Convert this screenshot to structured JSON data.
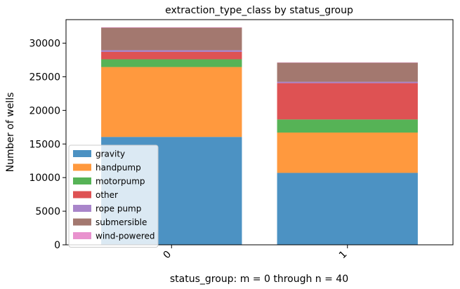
{
  "chart_data": {
    "type": "bar",
    "stacked": true,
    "title": "extraction_type_class by status_group",
    "xlabel": "status_group: m = 0 through n = 40",
    "ylabel": "Number of wells",
    "categories": [
      "0",
      "1"
    ],
    "ylim": [
      0,
      33500
    ],
    "yticks": [
      0,
      5000,
      10000,
      15000,
      20000,
      25000,
      30000
    ],
    "legend_position": "lower-left",
    "grid": false,
    "series": [
      {
        "name": "gravity",
        "color": "#1f77b4",
        "values": [
          16050,
          10700
        ]
      },
      {
        "name": "handpump",
        "color": "#ff7f0e",
        "values": [
          10400,
          6000
        ]
      },
      {
        "name": "motorpump",
        "color": "#2ca02c",
        "values": [
          1150,
          1950
        ]
      },
      {
        "name": "other",
        "color": "#d62728",
        "values": [
          1100,
          5400
        ]
      },
      {
        "name": "rope pump",
        "color": "#9467bd",
        "values": [
          250,
          200
        ]
      },
      {
        "name": "submersible",
        "color": "#8c564b",
        "values": [
          3350,
          2850
        ]
      },
      {
        "name": "wind-powered",
        "color": "#e377c2",
        "values": [
          60,
          40
        ]
      }
    ]
  }
}
